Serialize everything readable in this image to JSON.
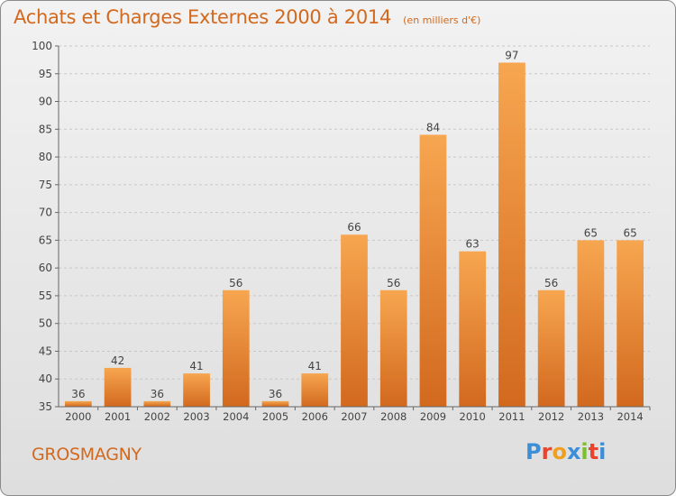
{
  "chart_data": {
    "type": "bar",
    "title": "Achats et Charges Externes 2000 à 2014",
    "subtitle": "(en milliers d'€)",
    "categories": [
      "2000",
      "2001",
      "2002",
      "2003",
      "2004",
      "2005",
      "2006",
      "2007",
      "2008",
      "2009",
      "2010",
      "2011",
      "2012",
      "2013",
      "2014"
    ],
    "values": [
      36,
      42,
      36,
      41,
      56,
      36,
      41,
      66,
      56,
      84,
      63,
      97,
      56,
      65,
      65
    ],
    "ylim": [
      35,
      100
    ],
    "yticks": [
      35,
      40,
      45,
      50,
      55,
      60,
      65,
      70,
      75,
      80,
      85,
      90,
      95,
      100
    ],
    "grid": true,
    "xlabel": "",
    "ylabel": ""
  },
  "footer": {
    "town": "GROSMAGNY",
    "logo_text": "Proxiti"
  },
  "colors": {
    "bar_top": "#f7a650",
    "bar_bottom": "#d2691e",
    "title": "#d2691e",
    "logo": [
      "#3a8fd8",
      "#e8452c",
      "#f0a020",
      "#3a8fd8",
      "#7cbf2a",
      "#e8452c",
      "#3a8fd8"
    ]
  }
}
